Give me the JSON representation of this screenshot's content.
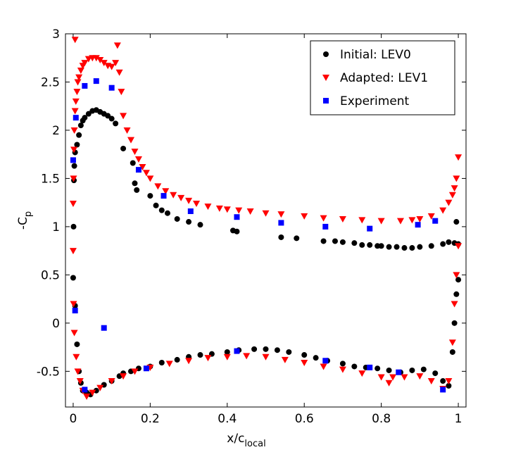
{
  "chart_data": {
    "type": "scatter",
    "x_label": {
      "main": "x/c",
      "sub": "local"
    },
    "y_label": {
      "main": "-C",
      "sub": "p"
    },
    "xlim": [
      -0.02,
      1.02
    ],
    "xticks": [
      0,
      0.2,
      0.4,
      0.6,
      0.8,
      1
    ],
    "ylim": [
      -0.87,
      3
    ],
    "yticks": [
      -0.5,
      0,
      0.5,
      1,
      1.5,
      2,
      2.5,
      3
    ],
    "legend": "upper right",
    "series": [
      {
        "name": "Initial: LEV0",
        "color": "#000000",
        "marker": "circle",
        "x": [
          0,
          0.001,
          0.002,
          0.003,
          0.005,
          0.01,
          0.015,
          0.02,
          0.025,
          0.03,
          0.04,
          0.05,
          0.06,
          0.07,
          0.08,
          0.09,
          0.1,
          0.11,
          0.13,
          0.155,
          0.16,
          0.165,
          0.2,
          0.215,
          0.23,
          0.245,
          0.27,
          0.3,
          0.33,
          0.415,
          0.425,
          0.54,
          0.58,
          0.65,
          0.68,
          0.7,
          0.73,
          0.75,
          0.77,
          0.79,
          0.8,
          0.82,
          0.84,
          0.86,
          0.88,
          0.9,
          0.93,
          0.96,
          0.975,
          0.99,
          0.995,
          1,
          1,
          0.005,
          0.01,
          0.015,
          0.02,
          0.025,
          0.035,
          0.045,
          0.06,
          0.08,
          0.1,
          0.12,
          0.13,
          0.15,
          0.17,
          0.2,
          0.23,
          0.27,
          0.3,
          0.33,
          0.36,
          0.4,
          0.43,
          0.47,
          0.5,
          0.53,
          0.56,
          0.6,
          0.63,
          0.66,
          0.7,
          0.73,
          0.76,
          0.79,
          0.82,
          0.85,
          0.88,
          0.91,
          0.94,
          0.96,
          0.975,
          0.985,
          0.99,
          0.995
        ],
        "values": [
          0.47,
          1.0,
          1.48,
          1.63,
          1.77,
          1.85,
          1.95,
          2.05,
          2.1,
          2.13,
          2.17,
          2.2,
          2.21,
          2.19,
          2.17,
          2.15,
          2.12,
          2.07,
          1.81,
          1.66,
          1.45,
          1.38,
          1.32,
          1.22,
          1.17,
          1.14,
          1.08,
          1.05,
          1.02,
          0.96,
          0.95,
          0.89,
          0.88,
          0.85,
          0.85,
          0.84,
          0.83,
          0.81,
          0.81,
          0.8,
          0.8,
          0.79,
          0.79,
          0.78,
          0.78,
          0.79,
          0.8,
          0.82,
          0.84,
          0.83,
          1.05,
          0.82,
          0.45,
          0.18,
          -0.22,
          -0.5,
          -0.62,
          -0.7,
          -0.72,
          -0.74,
          -0.7,
          -0.64,
          -0.6,
          -0.55,
          -0.52,
          -0.5,
          -0.47,
          -0.45,
          -0.41,
          -0.38,
          -0.35,
          -0.33,
          -0.32,
          -0.3,
          -0.28,
          -0.27,
          -0.27,
          -0.28,
          -0.3,
          -0.33,
          -0.36,
          -0.39,
          -0.42,
          -0.45,
          -0.46,
          -0.47,
          -0.49,
          -0.51,
          -0.49,
          -0.48,
          -0.52,
          -0.6,
          -0.65,
          -0.3,
          0.0,
          0.3
        ]
      },
      {
        "name": "Adapted: LEV1",
        "color": "#ff0000",
        "marker": "triangle-down",
        "x": [
          0,
          0.001,
          0.002,
          0.003,
          0.005,
          0.007,
          0.01,
          0.012,
          0.015,
          0.02,
          0.025,
          0.03,
          0.04,
          0.05,
          0.06,
          0.07,
          0.08,
          0.09,
          0.1,
          0.11,
          0.115,
          0.12,
          0.125,
          0.13,
          0.14,
          0.15,
          0.16,
          0.17,
          0.18,
          0.19,
          0.2,
          0.22,
          0.24,
          0.26,
          0.28,
          0.3,
          0.32,
          0.35,
          0.38,
          0.4,
          0.43,
          0.46,
          0.5,
          0.54,
          0.6,
          0.65,
          0.7,
          0.75,
          0.8,
          0.85,
          0.88,
          0.9,
          0.93,
          0.96,
          0.975,
          0.985,
          0.99,
          0.995,
          1,
          0.005,
          0,
          0.001,
          0.003,
          0.008,
          0.012,
          0.018,
          0.025,
          0.035,
          0.05,
          0.07,
          0.1,
          0.13,
          0.16,
          0.2,
          0.25,
          0.3,
          0.35,
          0.4,
          0.45,
          0.5,
          0.55,
          0.6,
          0.65,
          0.7,
          0.75,
          0.8,
          0.82,
          0.83,
          0.86,
          0.9,
          0.93,
          0.96,
          0.975,
          0.985,
          0.99,
          0.995,
          1
        ],
        "values": [
          1.24,
          1.5,
          1.8,
          2.0,
          2.2,
          2.3,
          2.4,
          2.5,
          2.55,
          2.62,
          2.67,
          2.7,
          2.74,
          2.75,
          2.75,
          2.73,
          2.7,
          2.67,
          2.66,
          2.7,
          2.88,
          2.6,
          2.4,
          2.15,
          2.0,
          1.9,
          1.78,
          1.7,
          1.62,
          1.56,
          1.5,
          1.42,
          1.37,
          1.33,
          1.3,
          1.27,
          1.24,
          1.21,
          1.19,
          1.18,
          1.17,
          1.16,
          1.14,
          1.13,
          1.11,
          1.09,
          1.08,
          1.07,
          1.06,
          1.06,
          1.07,
          1.08,
          1.11,
          1.17,
          1.25,
          1.33,
          1.4,
          1.5,
          1.72,
          2.94,
          0.75,
          0.2,
          -0.1,
          -0.35,
          -0.5,
          -0.6,
          -0.7,
          -0.76,
          -0.72,
          -0.67,
          -0.6,
          -0.55,
          -0.5,
          -0.46,
          -0.42,
          -0.39,
          -0.36,
          -0.35,
          -0.34,
          -0.35,
          -0.38,
          -0.41,
          -0.45,
          -0.48,
          -0.52,
          -0.56,
          -0.62,
          -0.56,
          -0.56,
          -0.55,
          -0.6,
          -0.68,
          -0.6,
          -0.2,
          0.2,
          0.5,
          0.8
        ]
      },
      {
        "name": "Experiment",
        "color": "#0000ff",
        "marker": "square",
        "x": [
          0,
          0.007,
          0.03,
          0.06,
          0.1,
          0.17,
          0.235,
          0.305,
          0.425,
          0.54,
          0.655,
          0.77,
          0.895,
          0.94,
          0.005,
          0.03,
          0.08,
          0.19,
          0.425,
          0.655,
          0.77,
          0.845,
          0.96
        ],
        "values": [
          1.69,
          2.13,
          2.46,
          2.51,
          2.44,
          1.59,
          1.32,
          1.16,
          1.1,
          1.04,
          1.0,
          0.98,
          1.02,
          1.06,
          0.13,
          -0.69,
          -0.05,
          -0.47,
          -0.29,
          -0.39,
          -0.46,
          -0.51,
          -0.69
        ]
      }
    ]
  }
}
